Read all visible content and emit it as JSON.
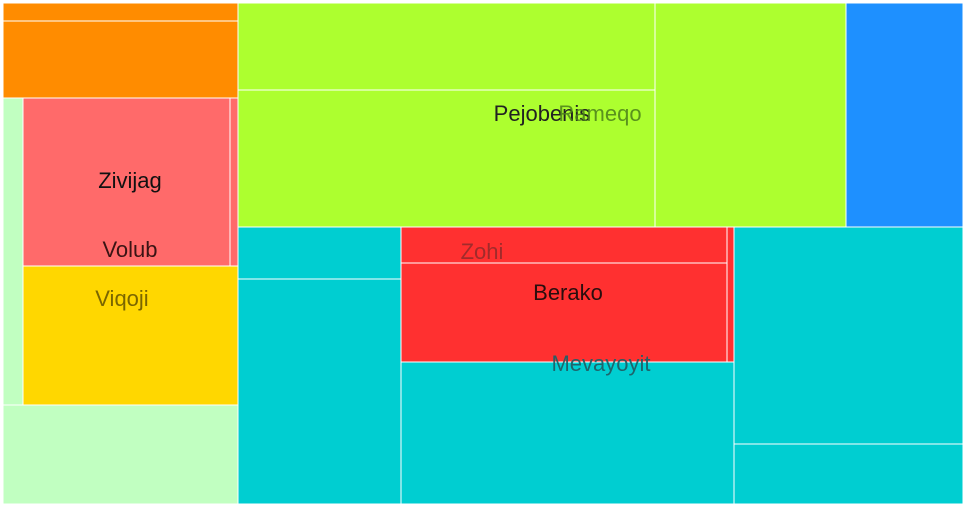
{
  "chart_data": {
    "type": "treemap",
    "title": "",
    "labels": [
      {
        "id": "pejobenis",
        "text": "Pejobenis",
        "color": "#222222",
        "opacity": 1
      },
      {
        "id": "rameqo",
        "text": "Rameqo",
        "color": "#4a7f1a",
        "opacity": 0.85
      },
      {
        "id": "zivijag",
        "text": "Zivijag",
        "color": "#111111",
        "opacity": 1
      },
      {
        "id": "volub",
        "text": "Volub",
        "color": "#3a1414",
        "opacity": 1
      },
      {
        "id": "viqoji",
        "text": "Viqoji",
        "color": "#6b5a00",
        "opacity": 0.9
      },
      {
        "id": "zohi",
        "text": "Zohi",
        "color": "#8a2a2a",
        "opacity": 0.8
      },
      {
        "id": "berako",
        "text": "Berako",
        "color": "#2a0e0e",
        "opacity": 1
      },
      {
        "id": "mevayoyit",
        "text": "Mevayoyit",
        "color": "#1f5f66",
        "opacity": 0.95
      }
    ],
    "colors": {
      "orange": "#ff8c00",
      "green": "#adff2f",
      "blue": "#1e90ff",
      "pale_green": "#c1ffc1",
      "salmon": "#ff6a6a",
      "gold": "#ffd700",
      "teal": "#00ced1",
      "red": "#ff3030"
    }
  }
}
